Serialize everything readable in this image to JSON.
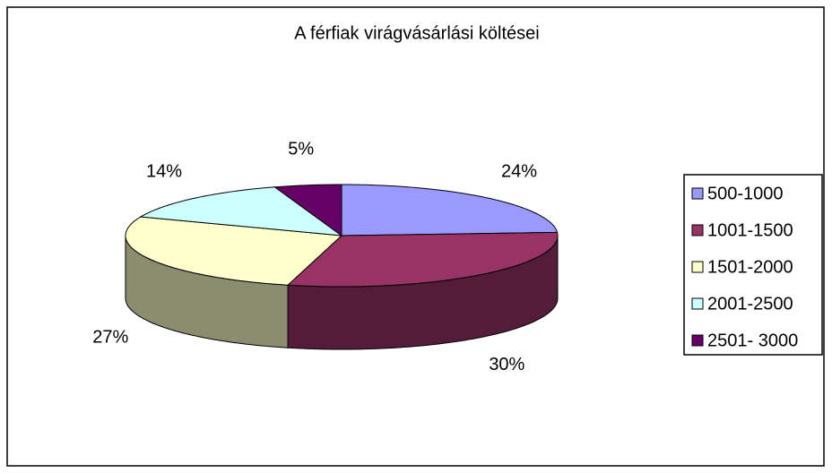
{
  "chart_data": {
    "type": "pie3d",
    "title": "A férfiak virágvásárlási költései",
    "categories": [
      "500-1000",
      "1001-1500",
      "1501-2000",
      "2001-2500",
      "2501- 3000"
    ],
    "values": [
      24,
      30,
      27,
      14,
      5
    ],
    "value_labels": [
      "24%",
      "30%",
      "27%",
      "14%",
      "5%"
    ],
    "colors": [
      "#9999ff",
      "#993366",
      "#ffffcc",
      "#ccffff",
      "#660066"
    ],
    "legend": "right"
  }
}
